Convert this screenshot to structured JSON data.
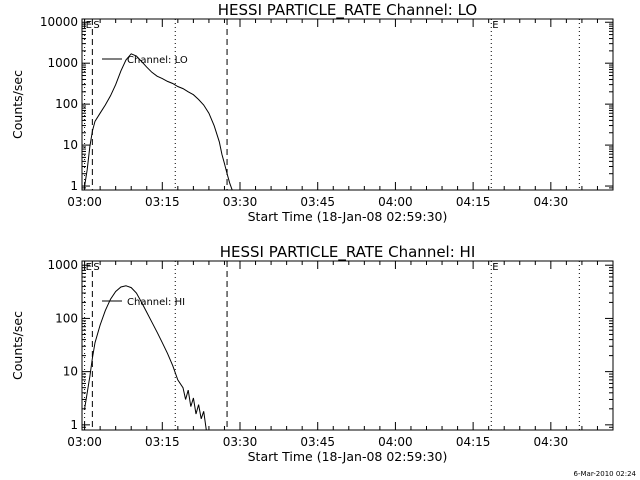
{
  "footer_timestamp": "6-Mar-2010 02:24",
  "chart_data": [
    {
      "type": "line",
      "title": "HESSI PARTICLE_RATE Channel: LO",
      "xlabel": "Start Time (18-Jan-08 02:59:30)",
      "ylabel": "Counts/sec",
      "yscale": "log",
      "xlim": [
        "02:59:30",
        "04:42:00"
      ],
      "ylim": [
        0.8,
        12000
      ],
      "xticks": [
        "03:00",
        "03:15",
        "03:30",
        "03:45",
        "04:00",
        "04:15",
        "04:30"
      ],
      "yticks": [
        {
          "value": 1,
          "label": "1"
        },
        {
          "value": 10,
          "label": "10"
        },
        {
          "value": 100,
          "label": "100"
        },
        {
          "value": 1000,
          "label": "1000"
        },
        {
          "value": 10000,
          "label": "10000"
        }
      ],
      "legend": {
        "position": "top-left",
        "label": "Channel: LO"
      },
      "markers": [
        {
          "time": "03:00:00",
          "style": "dotted",
          "label": "E"
        },
        {
          "time": "03:01:30",
          "style": "dashed",
          "label": "S"
        },
        {
          "time": "03:17:30",
          "style": "dotted",
          "label": ""
        },
        {
          "time": "03:27:30",
          "style": "dashed",
          "label": ""
        },
        {
          "time": "04:18:30",
          "style": "dotted",
          "label": "E"
        },
        {
          "time": "04:35:30",
          "style": "dotted",
          "label": ""
        }
      ],
      "series": [
        {
          "x": [
            "03:00:00",
            "03:00:30",
            "03:01:00",
            "03:01:30",
            "03:02:00",
            "03:03:00",
            "03:04:00",
            "03:05:00",
            "03:06:00",
            "03:07:00",
            "03:08:00",
            "03:09:00",
            "03:10:00",
            "03:11:00",
            "03:12:00",
            "03:13:00",
            "03:14:00",
            "03:15:00",
            "03:16:00",
            "03:17:00",
            "03:18:00",
            "03:19:00",
            "03:20:00",
            "03:21:00",
            "03:22:00",
            "03:23:00",
            "03:24:00",
            "03:25:00",
            "03:26:00",
            "03:26:30",
            "03:27:00",
            "03:27:30",
            "03:28:00",
            "03:28:30"
          ],
          "values": [
            1,
            2.5,
            9,
            22,
            38,
            60,
            95,
            160,
            300,
            650,
            1200,
            1700,
            1500,
            1100,
            800,
            600,
            480,
            420,
            360,
            320,
            270,
            240,
            200,
            170,
            130,
            95,
            60,
            30,
            12,
            6,
            3.5,
            2,
            1.2,
            0.8
          ]
        }
      ]
    },
    {
      "type": "line",
      "title": "HESSI PARTICLE_RATE Channel: HI",
      "xlabel": "Start Time (18-Jan-08 02:59:30)",
      "ylabel": "Counts/sec",
      "yscale": "log",
      "xlim": [
        "02:59:30",
        "04:42:00"
      ],
      "ylim": [
        0.8,
        1200
      ],
      "xticks": [
        "03:00",
        "03:15",
        "03:30",
        "03:45",
        "04:00",
        "04:15",
        "04:30"
      ],
      "yticks": [
        {
          "value": 1,
          "label": "1"
        },
        {
          "value": 10,
          "label": "10"
        },
        {
          "value": 100,
          "label": "100"
        },
        {
          "value": 1000,
          "label": "1000"
        }
      ],
      "legend": {
        "position": "top-left",
        "label": "Channel: HI"
      },
      "markers": [
        {
          "time": "03:00:00",
          "style": "dotted",
          "label": "E"
        },
        {
          "time": "03:01:30",
          "style": "dashed",
          "label": "S"
        },
        {
          "time": "03:17:30",
          "style": "dotted",
          "label": ""
        },
        {
          "time": "03:27:30",
          "style": "dashed",
          "label": ""
        },
        {
          "time": "04:18:30",
          "style": "dotted",
          "label": "E"
        },
        {
          "time": "04:35:30",
          "style": "dotted",
          "label": ""
        }
      ],
      "series": [
        {
          "x": [
            "03:00:00",
            "03:00:30",
            "03:01:00",
            "03:01:30",
            "03:02:00",
            "03:03:00",
            "03:04:00",
            "03:05:00",
            "03:06:00",
            "03:07:00",
            "03:08:00",
            "03:09:00",
            "03:10:00",
            "03:11:00",
            "03:12:00",
            "03:13:00",
            "03:14:00",
            "03:15:00",
            "03:16:00",
            "03:17:00",
            "03:18:00",
            "03:19:00",
            "03:19:30",
            "03:20:00",
            "03:20:30",
            "03:21:00",
            "03:21:30",
            "03:22:00",
            "03:22:30",
            "03:23:00",
            "03:23:30"
          ],
          "values": [
            2,
            4,
            8,
            18,
            35,
            75,
            140,
            230,
            320,
            390,
            410,
            380,
            300,
            200,
            130,
            85,
            55,
            35,
            22,
            13,
            7,
            5,
            3,
            4.5,
            2.2,
            3.2,
            1.6,
            2.4,
            1.3,
            1.8,
            0.8
          ]
        }
      ]
    }
  ]
}
